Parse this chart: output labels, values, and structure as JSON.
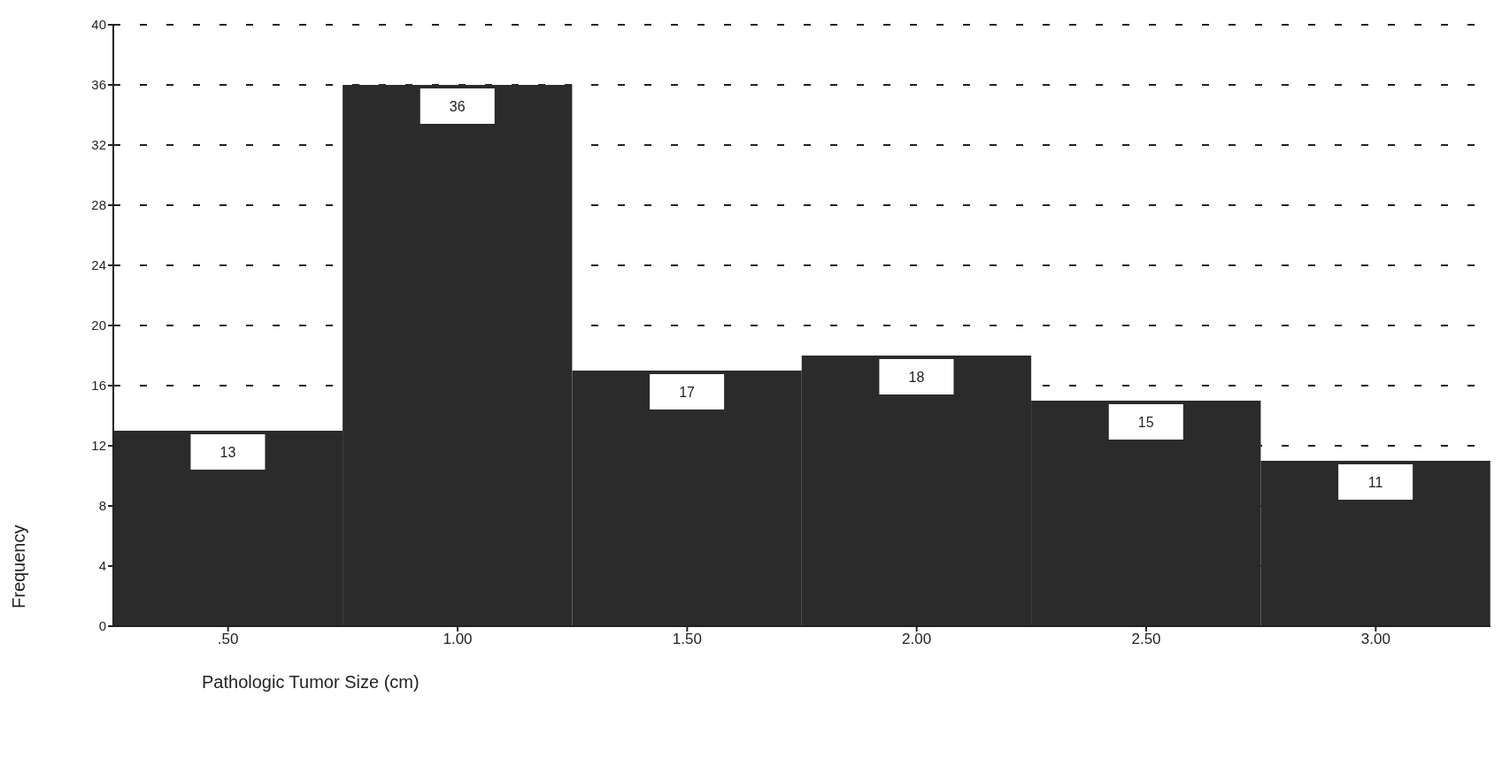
{
  "chart_data": {
    "type": "histogram",
    "xlabel": "Pathologic Tumor Size (cm)",
    "ylabel": "Frequency",
    "bins": [
      0.25,
      0.75,
      1.25,
      1.75,
      2.25,
      2.75,
      3.25
    ],
    "values": [
      13,
      36,
      17,
      18,
      15,
      11
    ],
    "color": "#2b2b2b",
    "data_labels": true,
    "xlim": [
      0.25,
      3.25
    ],
    "xticks": [
      {
        "value": 0.5,
        "label": ".50"
      },
      {
        "value": 1,
        "label": "1.00"
      },
      {
        "value": 1.5,
        "label": "1.50"
      },
      {
        "value": 2,
        "label": "2.00"
      },
      {
        "value": 2.5,
        "label": "2.50"
      },
      {
        "value": 3,
        "label": "3.00"
      }
    ],
    "ylim": [
      0,
      40
    ],
    "yticks": [
      0,
      4,
      8,
      12,
      16,
      20,
      24,
      28,
      32,
      36,
      40
    ],
    "grid": "y"
  }
}
